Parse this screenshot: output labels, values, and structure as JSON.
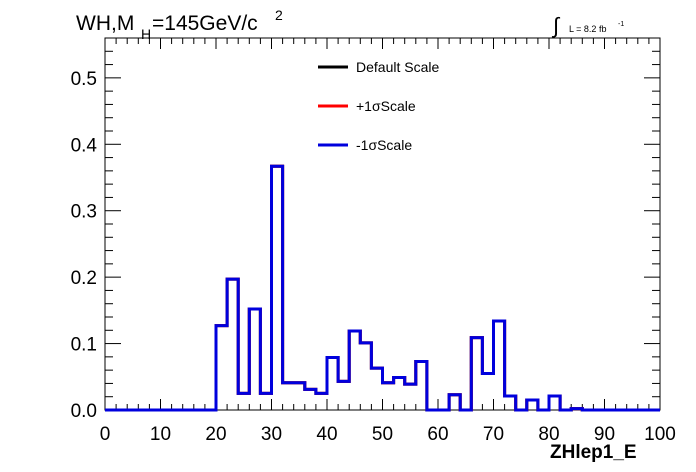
{
  "chart_data": {
    "type": "line",
    "title_main": "WH,M",
    "title_sub": "H",
    "title_mass": "=145GeV/c",
    "title_sup": "2",
    "lumi_label": "L = 8.2 fb",
    "lumi_sup": "-1",
    "xlabel": "ZHlep1_E",
    "ylabel": "",
    "xlim": [
      0,
      100
    ],
    "ylim": [
      0,
      0.56
    ],
    "x_ticks": [
      "0",
      "10",
      "20",
      "30",
      "40",
      "50",
      "60",
      "70",
      "80",
      "90",
      "100"
    ],
    "y_ticks": [
      "0.0",
      "0.1",
      "0.2",
      "0.3",
      "0.4",
      "0.5"
    ],
    "y_tick_values": [
      0,
      0.1,
      0.2,
      0.3,
      0.4,
      0.5
    ],
    "legend_placement": "top-center",
    "bin_edges": [
      0,
      2,
      4,
      6,
      8,
      10,
      12,
      14,
      16,
      18,
      20,
      22,
      24,
      26,
      28,
      30,
      32,
      34,
      36,
      38,
      40,
      42,
      44,
      46,
      48,
      50,
      52,
      54,
      56,
      58,
      60,
      62,
      64,
      66,
      68,
      70,
      72,
      74,
      76,
      78,
      80,
      82,
      84,
      86,
      88,
      90,
      92,
      94,
      96,
      98,
      100
    ],
    "series": [
      {
        "name": "Default Scale",
        "color": "#000000",
        "values": [
          0,
          0,
          0,
          0,
          0,
          0,
          0,
          0,
          0,
          0,
          0.127,
          0.197,
          0.025,
          0.152,
          0.025,
          0.367,
          0.041,
          0.041,
          0.031,
          0.025,
          0.079,
          0.043,
          0.119,
          0.101,
          0.063,
          0.041,
          0.049,
          0.039,
          0.073,
          0,
          0,
          0.023,
          0,
          0.109,
          0.055,
          0.134,
          0.021,
          0,
          0.015,
          0,
          0.021,
          0,
          0.002,
          0,
          0,
          0,
          0,
          0,
          0,
          0
        ]
      },
      {
        "name": "+1σScale",
        "color": "#ff0000",
        "values": [
          0,
          0,
          0,
          0,
          0,
          0,
          0,
          0,
          0,
          0,
          0.127,
          0.197,
          0.025,
          0.152,
          0.025,
          0.367,
          0.041,
          0.041,
          0.031,
          0.025,
          0.079,
          0.043,
          0.119,
          0.101,
          0.063,
          0.041,
          0.049,
          0.039,
          0.073,
          0,
          0,
          0.023,
          0,
          0.109,
          0.055,
          0.134,
          0.021,
          0,
          0.015,
          0,
          0.021,
          0,
          0.002,
          0,
          0,
          0,
          0,
          0,
          0,
          0
        ]
      },
      {
        "name": "-1σScale",
        "color": "#0000dd",
        "values": [
          0,
          0,
          0,
          0,
          0,
          0,
          0,
          0,
          0,
          0,
          0.127,
          0.197,
          0.025,
          0.152,
          0.025,
          0.367,
          0.041,
          0.041,
          0.031,
          0.025,
          0.079,
          0.043,
          0.119,
          0.101,
          0.063,
          0.041,
          0.049,
          0.039,
          0.073,
          0,
          0,
          0.023,
          0,
          0.109,
          0.055,
          0.134,
          0.021,
          0,
          0.015,
          0,
          0.021,
          0,
          0.002,
          0,
          0,
          0,
          0,
          0,
          0,
          0
        ]
      }
    ]
  }
}
